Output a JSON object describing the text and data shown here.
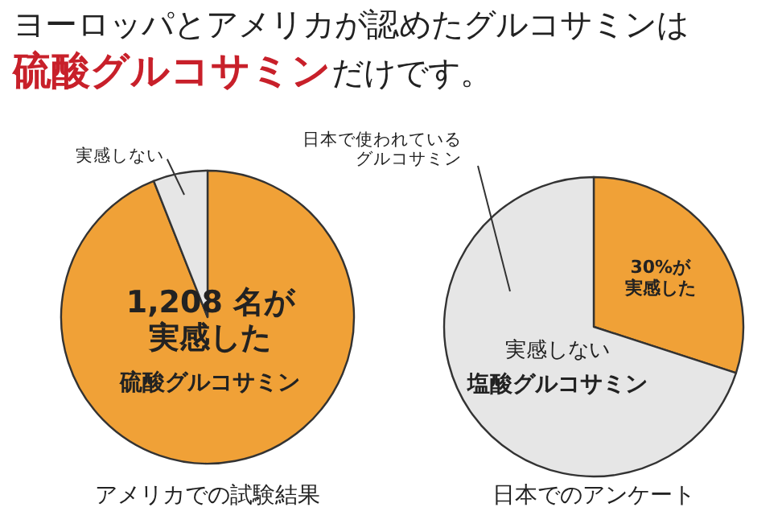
{
  "chart_data": [
    {
      "type": "pie",
      "title": "ヨーロッパとアメリカが認めたグルコサミンは",
      "subtitle": "**硫酸グルコサミン**だけです。",
      "xlabel": "アメリカでの試験結果",
      "categories": [
        "1,208 名が実感した",
        "実感しない"
      ],
      "values": [
        94,
        6
      ],
      "colors": [
        "#f0a137",
        "#e6e6e6"
      ],
      "annotations": [
        "硫酸グルコサミン"
      ]
    },
    {
      "type": "pie",
      "xlabel": "日本でのアンケート",
      "categories": [
        "30%が実感した",
        "実感しない"
      ],
      "values": [
        30,
        70
      ],
      "colors": [
        "#f0a137",
        "#e6e6e6"
      ],
      "annotations": [
        "塩酸グルコサミン",
        "日本で使われているグルコサミン"
      ]
    }
  ]
}
